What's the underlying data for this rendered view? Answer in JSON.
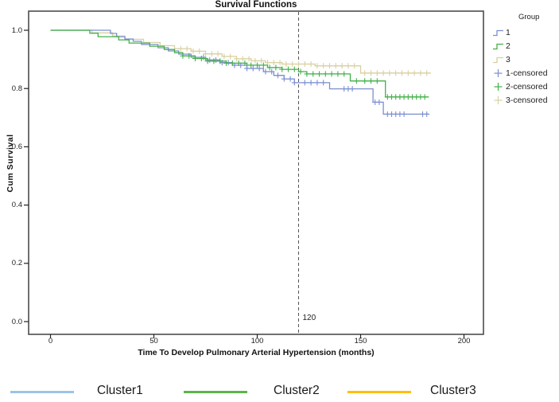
{
  "figure": {
    "title": "Survival Functions",
    "border_color": "#4d4d4d",
    "background_color": "#ffffff"
  },
  "chart_data": {
    "type": "line",
    "subtype": "kaplan-meier-step-survival",
    "title": "Survival Functions",
    "xlabel": "Time To Develop Pulmonary Arterial Hypertension (months)",
    "ylabel": "Cum Survival",
    "x_ticks": [
      0,
      50,
      100,
      150,
      200
    ],
    "y_ticks": [
      "0.0",
      "0.2",
      "0.4",
      "0.6",
      "0.8",
      "1.0"
    ],
    "xlim": [
      -10.58,
      209.42
    ],
    "ylim": [
      -0.0437,
      1.0656
    ],
    "grid": false,
    "ref_line": {
      "x": 120,
      "label": "120",
      "style": "dashed",
      "color": "#555555"
    },
    "legend": {
      "title": "Group",
      "position": "right-outside",
      "items": [
        {
          "label": "1",
          "type": "step",
          "color": "#7b8fd0"
        },
        {
          "label": "2",
          "type": "step",
          "color": "#43b04a"
        },
        {
          "label": "3",
          "type": "step",
          "color": "#d8d0a2"
        },
        {
          "label": "1-censored",
          "type": "plus",
          "color": "#7b8fd0"
        },
        {
          "label": "2-censored",
          "type": "plus",
          "color": "#43b04a"
        },
        {
          "label": "3-censored",
          "type": "plus",
          "color": "#d8d0a2"
        }
      ]
    },
    "series": [
      {
        "name": "3",
        "color": "#d8d0a2",
        "points": [
          [
            0,
            1
          ],
          [
            20,
            1
          ],
          [
            20,
            0.991
          ],
          [
            30,
            0.991
          ],
          [
            30,
            0.98
          ],
          [
            36,
            0.98
          ],
          [
            36,
            0.969
          ],
          [
            45,
            0.969
          ],
          [
            45,
            0.958
          ],
          [
            53,
            0.958
          ],
          [
            53,
            0.947
          ],
          [
            60,
            0.947
          ],
          [
            60,
            0.937
          ],
          [
            68,
            0.937
          ],
          [
            68,
            0.928
          ],
          [
            75,
            0.928
          ],
          [
            75,
            0.919
          ],
          [
            83,
            0.919
          ],
          [
            83,
            0.91
          ],
          [
            90,
            0.91
          ],
          [
            90,
            0.902
          ],
          [
            97,
            0.902
          ],
          [
            97,
            0.895
          ],
          [
            104,
            0.895
          ],
          [
            104,
            0.889
          ],
          [
            112,
            0.889
          ],
          [
            112,
            0.884
          ],
          [
            128,
            0.884
          ],
          [
            128,
            0.878
          ],
          [
            150,
            0.878
          ],
          [
            150,
            0.853
          ],
          [
            184,
            0.853
          ]
        ],
        "censored": [
          63,
          66,
          69,
          72,
          75,
          78,
          81,
          84,
          87,
          90,
          93,
          96,
          99,
          102,
          105,
          108,
          111,
          114,
          117,
          120,
          123,
          126,
          129,
          132,
          135,
          138,
          141,
          144,
          147,
          152,
          155,
          158,
          161,
          164,
          167,
          170,
          173,
          176,
          179,
          182
        ]
      },
      {
        "name": "1",
        "color": "#7b8fd0",
        "points": [
          [
            0,
            1
          ],
          [
            29,
            1
          ],
          [
            29,
            0.989
          ],
          [
            32,
            0.989
          ],
          [
            32,
            0.978
          ],
          [
            36,
            0.978
          ],
          [
            36,
            0.97
          ],
          [
            40,
            0.97
          ],
          [
            40,
            0.962
          ],
          [
            44,
            0.962
          ],
          [
            44,
            0.951
          ],
          [
            52,
            0.951
          ],
          [
            52,
            0.94
          ],
          [
            57,
            0.94
          ],
          [
            57,
            0.929
          ],
          [
            62,
            0.929
          ],
          [
            62,
            0.918
          ],
          [
            68,
            0.918
          ],
          [
            68,
            0.907
          ],
          [
            75,
            0.907
          ],
          [
            75,
            0.898
          ],
          [
            82,
            0.898
          ],
          [
            82,
            0.889
          ],
          [
            88,
            0.889
          ],
          [
            88,
            0.88
          ],
          [
            95,
            0.88
          ],
          [
            95,
            0.869
          ],
          [
            103,
            0.869
          ],
          [
            103,
            0.858
          ],
          [
            108,
            0.858
          ],
          [
            108,
            0.845
          ],
          [
            113,
            0.845
          ],
          [
            113,
            0.833
          ],
          [
            118,
            0.833
          ],
          [
            118,
            0.82
          ],
          [
            135,
            0.82
          ],
          [
            135,
            0.799
          ],
          [
            156,
            0.799
          ],
          [
            156,
            0.753
          ],
          [
            161,
            0.753
          ],
          [
            161,
            0.712
          ],
          [
            183,
            0.712
          ]
        ],
        "censored": [
          74,
          77,
          80,
          83,
          86,
          89,
          92,
          95,
          98,
          101,
          104,
          107,
          110,
          113,
          116,
          118,
          123,
          126,
          129,
          132,
          142,
          144,
          146,
          157,
          159,
          163,
          165,
          167,
          169,
          171,
          180,
          182
        ]
      },
      {
        "name": "2",
        "color": "#43b04a",
        "points": [
          [
            0,
            1
          ],
          [
            19,
            1
          ],
          [
            19,
            0.99
          ],
          [
            23,
            0.99
          ],
          [
            23,
            0.978
          ],
          [
            33,
            0.978
          ],
          [
            33,
            0.967
          ],
          [
            38,
            0.967
          ],
          [
            38,
            0.956
          ],
          [
            48,
            0.956
          ],
          [
            48,
            0.945
          ],
          [
            55,
            0.945
          ],
          [
            55,
            0.934
          ],
          [
            60,
            0.934
          ],
          [
            60,
            0.923
          ],
          [
            64,
            0.923
          ],
          [
            64,
            0.912
          ],
          [
            70,
            0.912
          ],
          [
            70,
            0.903
          ],
          [
            76,
            0.903
          ],
          [
            76,
            0.894
          ],
          [
            85,
            0.894
          ],
          [
            85,
            0.887
          ],
          [
            95,
            0.887
          ],
          [
            95,
            0.88
          ],
          [
            105,
            0.88
          ],
          [
            105,
            0.872
          ],
          [
            112,
            0.872
          ],
          [
            112,
            0.866
          ],
          [
            120,
            0.866
          ],
          [
            120,
            0.858
          ],
          [
            124,
            0.858
          ],
          [
            124,
            0.85
          ],
          [
            145,
            0.85
          ],
          [
            145,
            0.826
          ],
          [
            162,
            0.826
          ],
          [
            162,
            0.771
          ],
          [
            183,
            0.771
          ]
        ],
        "censored": [
          64,
          67,
          70,
          73,
          76,
          79,
          82,
          85,
          88,
          91,
          94,
          97,
          100,
          103,
          106,
          109,
          112,
          115,
          118,
          121,
          124,
          127,
          130,
          133,
          136,
          139,
          142,
          148,
          152,
          155,
          158,
          163,
          165,
          167,
          169,
          171,
          173,
          175,
          177,
          179,
          181
        ]
      }
    ]
  },
  "bottom_legend": {
    "items": [
      {
        "label": "Cluster1",
        "color": "#9dc3e6"
      },
      {
        "label": "Cluster2",
        "color": "#5bb646"
      },
      {
        "label": "Cluster3",
        "color": "#ffc000"
      }
    ]
  }
}
